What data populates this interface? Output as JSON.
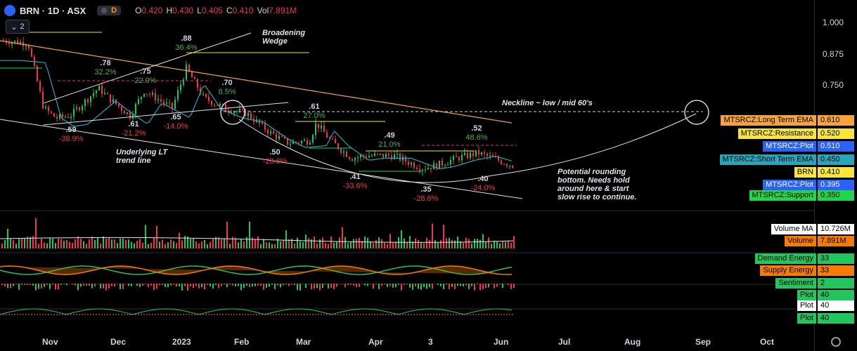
{
  "header": {
    "symbol": "BRN · 1D · ASX",
    "badge": "D",
    "ohlc": [
      {
        "k": "O",
        "v": "0.420"
      },
      {
        "k": "H",
        "v": "0.430"
      },
      {
        "k": "L",
        "v": "0.405"
      },
      {
        "k": "C",
        "v": "0.410"
      },
      {
        "k": "Vol",
        "v": "7.891M"
      }
    ],
    "collapse_count": "2"
  },
  "y_ticks": [
    "1.000",
    "0.875",
    "0.750"
  ],
  "x_ticks": [
    "Nov",
    "Dec",
    "2023",
    "Feb",
    "Mar",
    "Apr",
    "3",
    "Jun",
    "Jul",
    "Aug",
    "Sep",
    "Oct"
  ],
  "price_labels": [
    {
      "label": "MTSRCZ:Long Term EMA",
      "value": "0.610",
      "bg": "#f5a33a",
      "fg": "#000000"
    },
    {
      "label": "MTSRCZ:Resistance",
      "value": "0.520",
      "bg": "#f8e53b",
      "fg": "#000000"
    },
    {
      "label": "MTSRCZ:Plot",
      "value": "0.510",
      "bg": "#2962ff",
      "fg": "#ffffff"
    },
    {
      "label": "MTSRCZ:Short Term EMA",
      "value": "0.450",
      "bg": "#26a6b8",
      "fg": "#000000"
    },
    {
      "label": "BRN",
      "value": "0.410",
      "bg": "#f8e53b",
      "fg": "#000000"
    },
    {
      "label": "MTSRCZ:Plot",
      "value": "0.395",
      "bg": "#2962ff",
      "fg": "#ffffff"
    },
    {
      "label": "MTSRCZ:Support",
      "value": "0.350",
      "bg": "#22d44a",
      "fg": "#000000"
    }
  ],
  "volume_labels": [
    {
      "label": "Volume MA",
      "value": "10.726M",
      "bg": "#ffffff",
      "fg": "#000000"
    },
    {
      "label": "Volume",
      "value": "7.891M",
      "bg": "#f57c00",
      "fg": "#000000"
    }
  ],
  "energy_labels": [
    {
      "label": "Demand Energy",
      "value": "33",
      "bg": "#22c55e",
      "fg": "#000000"
    },
    {
      "label": "Supply Energy",
      "value": "33",
      "bg": "#f57c00",
      "fg": "#000000"
    },
    {
      "label": "Sentiment",
      "value": "2",
      "bg": "#22c55e",
      "fg": "#000000"
    }
  ],
  "plot_labels": [
    {
      "label": "Plot",
      "value": "40",
      "bg": "#22c55e",
      "fg": "#000000"
    },
    {
      "label": "Plot",
      "value": "40",
      "bg": "#ffffff",
      "fg": "#000000"
    },
    {
      "label": "Plot",
      "value": "40",
      "bg": "#22c55e",
      "fg": "#000000"
    }
  ],
  "annotations": {
    "broadening": "Broadening\nWedge",
    "neckline": "Neckline ~ low / mid 60's",
    "lt_trend": "Underlying  LT\ntrend line",
    "rounding": "Potential rounding\nbottom. Needs hold\naround here & start\nslow rise to continue."
  },
  "chart_data": {
    "type": "candlestick",
    "title": "BRN · 1D · ASX",
    "y_scale": "linear",
    "ylim": [
      0.3,
      1.05
    ],
    "pivots": [
      {
        "label": ".88",
        "pct": "36.4%",
        "kind": "high",
        "x_month": "Jan",
        "price": 0.88
      },
      {
        "label": ".78",
        "pct": "32.2%",
        "kind": "high",
        "x_month": "Dec",
        "price": 0.78
      },
      {
        "label": ".75",
        "pct": "22.0%",
        "kind": "high",
        "x_month": "Dec",
        "price": 0.75
      },
      {
        "label": ".70",
        "pct": "8.5%",
        "kind": "high",
        "x_month": "Feb",
        "price": 0.7
      },
      {
        "label": ".61",
        "pct": "27.0%",
        "kind": "high",
        "x_month": "Mar",
        "price": 0.61
      },
      {
        "label": ".49",
        "pct": "21.0%",
        "kind": "high",
        "x_month": "Apr",
        "price": 0.49
      },
      {
        "label": ".52",
        "pct": "48.6%",
        "kind": "high",
        "x_month": "May",
        "price": 0.52
      },
      {
        "label": ".59",
        "pct": "-38.9%",
        "kind": "low",
        "x_month": "Nov",
        "price": 0.59
      },
      {
        "label": ".61",
        "pct": "-21.2%",
        "kind": "low",
        "x_month": "Dec",
        "price": 0.61
      },
      {
        "label": ".65",
        "pct": "-14.0%",
        "kind": "low",
        "x_month": "Jan",
        "price": 0.65
      },
      {
        "label": ".50",
        "pct": "-28.6%",
        "kind": "low",
        "x_month": "Mar",
        "price": 0.5
      },
      {
        "label": ".41",
        "pct": "-33.6%",
        "kind": "low",
        "x_month": "Apr",
        "price": 0.41
      },
      {
        "label": ".35",
        "pct": "-28.6%",
        "kind": "low",
        "x_month": "May",
        "price": 0.35
      },
      {
        "label": ".40",
        "pct": "-24.0%",
        "kind": "low",
        "x_month": "Jun",
        "price": 0.4
      }
    ],
    "indicators": [
      {
        "name": "MTSRCZ:Long Term EMA",
        "last": 0.61,
        "color": "#f5a33a"
      },
      {
        "name": "MTSRCZ:Resistance",
        "last": 0.52,
        "color": "#f8e53b"
      },
      {
        "name": "MTSRCZ:Plot",
        "last": 0.51,
        "color": "#2962ff"
      },
      {
        "name": "MTSRCZ:Short Term EMA",
        "last": 0.45,
        "color": "#26a6b8"
      },
      {
        "name": "BRN",
        "last": 0.41,
        "color": "#f8e53b"
      },
      {
        "name": "MTSRCZ:Plot",
        "last": 0.395,
        "color": "#2962ff"
      },
      {
        "name": "MTSRCZ:Support",
        "last": 0.35,
        "color": "#22d44a"
      }
    ],
    "volume": {
      "ma": "10.726M",
      "last": "7.891M"
    },
    "sub_indicators": {
      "demand_energy": 33,
      "supply_energy": 33,
      "sentiment": 2,
      "plots": [
        40,
        40,
        40
      ]
    }
  }
}
